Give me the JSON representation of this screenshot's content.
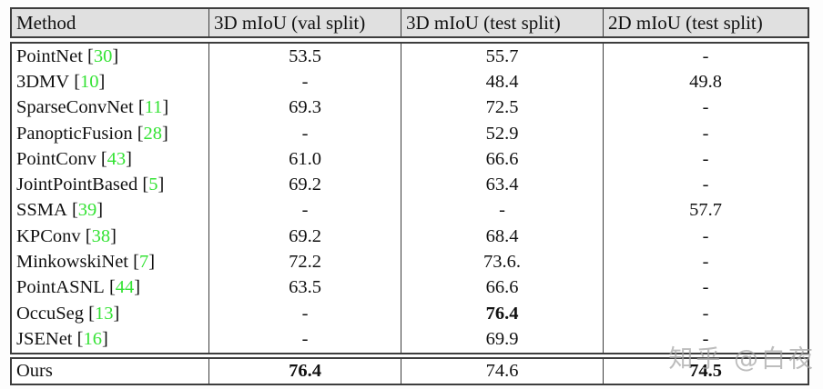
{
  "table": {
    "columns": [
      {
        "label": "Method"
      },
      {
        "label": "3D mIoU (val split)"
      },
      {
        "label": "3D mIoU (test split)"
      },
      {
        "label": "2D mIoU (test split)"
      }
    ],
    "rows": [
      {
        "method": "PointNet",
        "ref": "30",
        "val": "53.5",
        "test3d": "55.7",
        "test2d": "-",
        "bold": []
      },
      {
        "method": "3DMV",
        "ref": "10",
        "val": "-",
        "test3d": "48.4",
        "test2d": "49.8",
        "bold": []
      },
      {
        "method": "SparseConvNet",
        "ref": "11",
        "val": "69.3",
        "test3d": "72.5",
        "test2d": "-",
        "bold": []
      },
      {
        "method": "PanopticFusion",
        "ref": "28",
        "val": "-",
        "test3d": "52.9",
        "test2d": "-",
        "bold": []
      },
      {
        "method": "PointConv",
        "ref": "43",
        "val": "61.0",
        "test3d": "66.6",
        "test2d": "-",
        "bold": []
      },
      {
        "method": "JointPointBased",
        "ref": "5",
        "val": "69.2",
        "test3d": "63.4",
        "test2d": "-",
        "bold": []
      },
      {
        "method": "SSMA",
        "ref": "39",
        "val": "-",
        "test3d": "-",
        "test2d": "57.7",
        "bold": []
      },
      {
        "method": "KPConv",
        "ref": "38",
        "val": "69.2",
        "test3d": "68.4",
        "test2d": "-",
        "bold": []
      },
      {
        "method": "MinkowskiNet",
        "ref": "7",
        "val": "72.2",
        "test3d": "73.6.",
        "test2d": "-",
        "bold": []
      },
      {
        "method": "PointASNL",
        "ref": "44",
        "val": "63.5",
        "test3d": "66.6",
        "test2d": "-",
        "bold": []
      },
      {
        "method": "OccuSeg",
        "ref": "13",
        "val": "-",
        "test3d": "76.4",
        "test2d": "-",
        "bold": [
          "test3d"
        ]
      },
      {
        "method": "JSENet",
        "ref": "16",
        "val": "-",
        "test3d": "69.9",
        "test2d": "-",
        "bold": []
      }
    ],
    "footer_row": {
      "method": "Ours",
      "ref": null,
      "val": "76.4",
      "test3d": "74.6",
      "test2d": "74.5",
      "bold": [
        "val",
        "test2d"
      ]
    }
  },
  "watermark": {
    "text": "知乎 @白夜"
  },
  "colors": {
    "citation_green": "#35e335",
    "header_bg": "#e0e0e0",
    "border": "#3d3d3d",
    "watermark_gray": "#a4a4a4"
  }
}
